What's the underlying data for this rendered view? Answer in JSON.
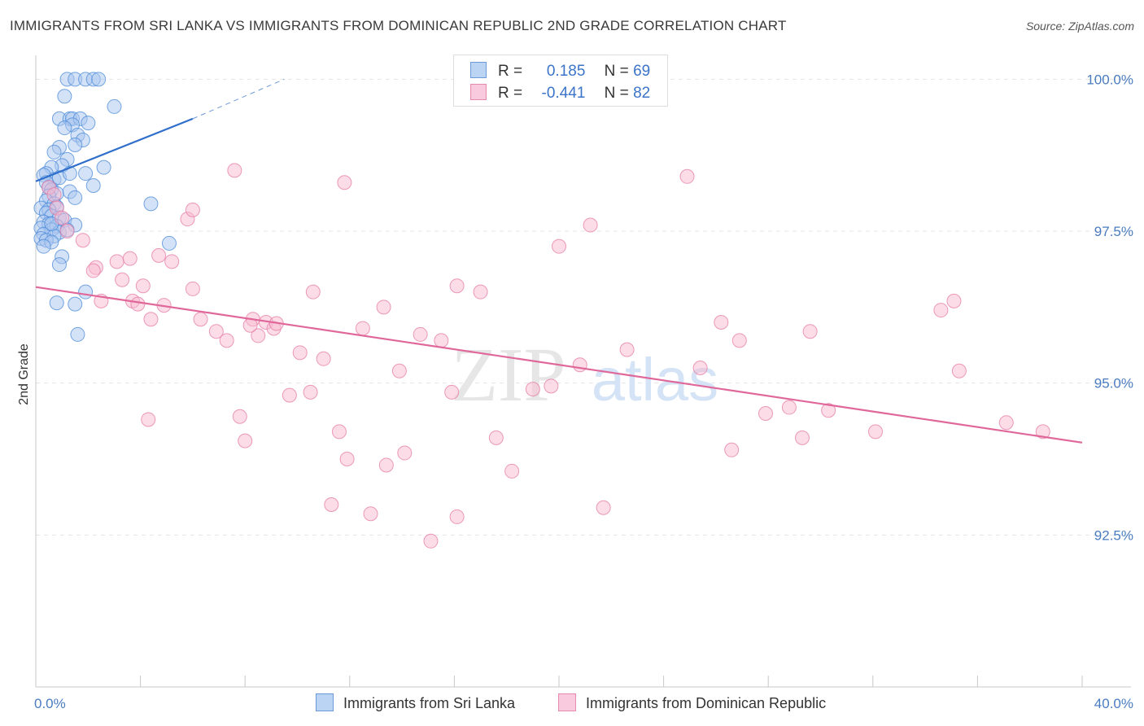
{
  "title": "IMMIGRANTS FROM SRI LANKA VS IMMIGRANTS FROM DOMINICAN REPUBLIC 2ND GRADE CORRELATION CHART",
  "source": "Source: ZipAtlas.com",
  "watermark": {
    "zip": "ZIP",
    "atlas": "atlas"
  },
  "legend": {
    "rows": [
      {
        "r_label": "R =",
        "r_value": "0.185",
        "n_label": "N =",
        "n_value": "69",
        "color": "#a9c6ef"
      },
      {
        "r_label": "R =",
        "r_value": "-0.441",
        "n_label": "N =",
        "n_value": "82",
        "color": "#f7b9cf"
      }
    ]
  },
  "chart_data": {
    "type": "scatter",
    "xlabel": "",
    "ylabel": "2nd Grade",
    "xlim": [
      0,
      40
    ],
    "ylim": [
      90.0,
      100.5
    ],
    "x_tick_labels": [
      "0.0%",
      "40.0%"
    ],
    "y_ticks": [
      92.5,
      95.0,
      97.5,
      100.0
    ],
    "y_tick_labels": [
      "92.5%",
      "95.0%",
      "97.5%",
      "100.0%"
    ],
    "grid": true,
    "series": [
      {
        "name": "Immigrants from Sri Lanka",
        "color": "#4a8ad8",
        "fill": "#a9c6ef",
        "points": [
          [
            1.2,
            100.0
          ],
          [
            1.5,
            100.0
          ],
          [
            1.9,
            100.0
          ],
          [
            2.2,
            100.0
          ],
          [
            2.4,
            100.0
          ],
          [
            1.1,
            99.72
          ],
          [
            3.0,
            99.55
          ],
          [
            0.9,
            99.35
          ],
          [
            1.3,
            99.35
          ],
          [
            1.4,
            99.35
          ],
          [
            1.7,
            99.35
          ],
          [
            1.4,
            99.25
          ],
          [
            1.1,
            99.2
          ],
          [
            2.0,
            99.28
          ],
          [
            1.6,
            99.08
          ],
          [
            1.8,
            99.0
          ],
          [
            1.5,
            98.92
          ],
          [
            0.9,
            98.88
          ],
          [
            0.7,
            98.8
          ],
          [
            1.2,
            98.68
          ],
          [
            1.0,
            98.58
          ],
          [
            0.6,
            98.55
          ],
          [
            0.4,
            98.45
          ],
          [
            2.6,
            98.55
          ],
          [
            1.9,
            98.45
          ],
          [
            0.7,
            98.35
          ],
          [
            0.3,
            98.42
          ],
          [
            0.9,
            98.38
          ],
          [
            1.3,
            98.45
          ],
          [
            0.4,
            98.3
          ],
          [
            0.5,
            98.22
          ],
          [
            0.6,
            98.18
          ],
          [
            0.8,
            98.12
          ],
          [
            0.5,
            98.08
          ],
          [
            1.3,
            98.15
          ],
          [
            2.2,
            98.25
          ],
          [
            1.5,
            98.05
          ],
          [
            0.4,
            98.0
          ],
          [
            0.7,
            97.95
          ],
          [
            0.8,
            97.9
          ],
          [
            4.4,
            97.95
          ],
          [
            0.2,
            97.88
          ],
          [
            0.5,
            97.85
          ],
          [
            0.4,
            97.8
          ],
          [
            0.6,
            97.75
          ],
          [
            0.9,
            97.72
          ],
          [
            1.1,
            97.68
          ],
          [
            0.3,
            97.65
          ],
          [
            0.5,
            97.62
          ],
          [
            0.8,
            97.58
          ],
          [
            1.5,
            97.6
          ],
          [
            0.2,
            97.55
          ],
          [
            0.6,
            97.52
          ],
          [
            0.9,
            97.48
          ],
          [
            1.2,
            97.52
          ],
          [
            0.3,
            97.45
          ],
          [
            0.7,
            97.42
          ],
          [
            0.2,
            97.38
          ],
          [
            0.4,
            97.35
          ],
          [
            0.6,
            97.32
          ],
          [
            5.1,
            97.3
          ],
          [
            0.3,
            97.25
          ],
          [
            1.0,
            97.08
          ],
          [
            0.9,
            96.95
          ],
          [
            1.9,
            96.5
          ],
          [
            0.8,
            96.32
          ],
          [
            1.5,
            96.3
          ],
          [
            1.6,
            95.8
          ],
          [
            0.6,
            97.62
          ]
        ]
      },
      {
        "name": "Immigrants from Dominican Republic",
        "color": "#e57ba4",
        "fill": "#f7b9cf",
        "points": [
          [
            0.5,
            98.22
          ],
          [
            0.7,
            98.1
          ],
          [
            0.8,
            97.88
          ],
          [
            1.0,
            97.72
          ],
          [
            1.2,
            97.5
          ],
          [
            1.8,
            97.35
          ],
          [
            2.3,
            96.9
          ],
          [
            2.2,
            96.85
          ],
          [
            2.5,
            96.35
          ],
          [
            3.3,
            96.7
          ],
          [
            3.1,
            97.0
          ],
          [
            3.7,
            96.35
          ],
          [
            3.6,
            97.05
          ],
          [
            4.1,
            96.6
          ],
          [
            3.9,
            96.3
          ],
          [
            4.4,
            96.05
          ],
          [
            4.7,
            97.1
          ],
          [
            4.9,
            96.28
          ],
          [
            5.2,
            97.0
          ],
          [
            5.8,
            97.7
          ],
          [
            6.0,
            97.85
          ],
          [
            6.0,
            96.55
          ],
          [
            6.3,
            96.05
          ],
          [
            6.9,
            95.85
          ],
          [
            7.3,
            95.7
          ],
          [
            7.6,
            98.5
          ],
          [
            7.8,
            94.45
          ],
          [
            8.3,
            96.05
          ],
          [
            8.5,
            95.78
          ],
          [
            8.2,
            95.95
          ],
          [
            8.8,
            96.0
          ],
          [
            9.1,
            95.9
          ],
          [
            8.0,
            94.05
          ],
          [
            10.1,
            95.5
          ],
          [
            9.7,
            94.8
          ],
          [
            10.6,
            96.5
          ],
          [
            10.5,
            94.85
          ],
          [
            11.0,
            95.4
          ],
          [
            11.8,
            98.3
          ],
          [
            11.3,
            93.0
          ],
          [
            11.6,
            94.2
          ],
          [
            11.9,
            93.75
          ],
          [
            12.5,
            95.9
          ],
          [
            12.8,
            92.85
          ],
          [
            13.3,
            96.25
          ],
          [
            13.4,
            93.65
          ],
          [
            13.9,
            95.2
          ],
          [
            14.1,
            93.85
          ],
          [
            14.7,
            95.8
          ],
          [
            15.1,
            92.4
          ],
          [
            15.5,
            95.7
          ],
          [
            15.9,
            94.85
          ],
          [
            16.1,
            92.8
          ],
          [
            17.0,
            96.5
          ],
          [
            16.1,
            96.6
          ],
          [
            17.6,
            94.1
          ],
          [
            18.2,
            93.55
          ],
          [
            19.0,
            94.9
          ],
          [
            19.7,
            94.95
          ],
          [
            20.0,
            97.25
          ],
          [
            20.8,
            95.3
          ],
          [
            21.2,
            97.6
          ],
          [
            21.7,
            92.95
          ],
          [
            22.6,
            95.55
          ],
          [
            4.3,
            94.4
          ],
          [
            24.9,
            98.4
          ],
          [
            25.4,
            95.25
          ],
          [
            26.2,
            96.0
          ],
          [
            26.6,
            93.9
          ],
          [
            26.9,
            95.7
          ],
          [
            27.9,
            94.5
          ],
          [
            28.8,
            94.6
          ],
          [
            29.3,
            94.1
          ],
          [
            29.6,
            95.85
          ],
          [
            30.3,
            94.55
          ],
          [
            32.1,
            94.2
          ],
          [
            34.6,
            96.2
          ],
          [
            35.1,
            96.35
          ],
          [
            35.3,
            95.2
          ],
          [
            37.1,
            94.35
          ],
          [
            38.5,
            94.2
          ],
          [
            9.2,
            95.98
          ]
        ]
      }
    ],
    "trendlines": [
      {
        "series": "Immigrants from Sri Lanka",
        "x": [
          0.0,
          6.0
        ],
        "y": [
          98.32,
          99.35
        ],
        "dashed_to": [
          9.5,
          100.0
        ]
      },
      {
        "series": "Immigrants from Dominican Republic",
        "x": [
          0.0,
          40.0
        ],
        "y": [
          96.58,
          94.02
        ]
      }
    ]
  }
}
